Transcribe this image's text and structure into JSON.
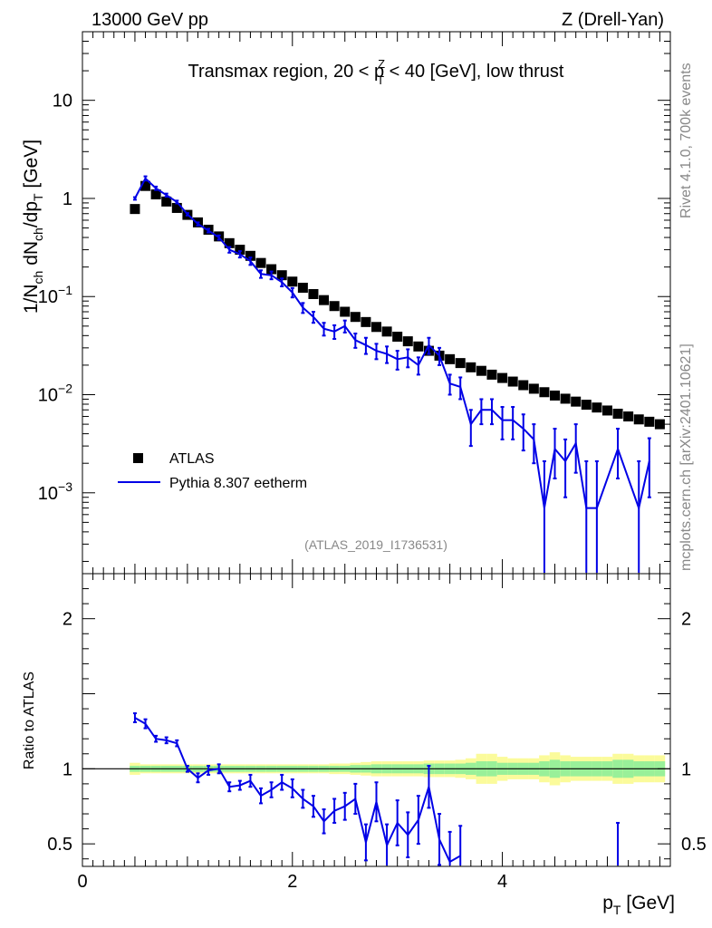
{
  "header": {
    "left": "13000 GeV pp",
    "right": "Z (Drell-Yan)"
  },
  "side_labels": {
    "rivet": "Rivet 4.1.0,  700k events",
    "mcplots": "mcplots.cern.ch [arXiv:2401.10621]"
  },
  "colors": {
    "atlas": "#000000",
    "pythia": "#0000e6",
    "band_inner": "#99f099",
    "band_outer": "#fbfb9b"
  },
  "chart_data": [
    {
      "type": "scatter",
      "title": "Transmax region, 20 < p_T^Z < 40 [GeV], low thrust",
      "title_parts": [
        "Transmax region, 20 < p",
        "Z",
        "T",
        " < 40 [GeV], low thrust"
      ],
      "ylabel": "1/N_ch dN_ch/dp_T [GeV]",
      "ylabel_parts": [
        "1/N",
        "ch",
        " dN",
        "ch",
        "/dp",
        "T",
        " [GeV]"
      ],
      "yscale": "log",
      "ylim": [
        0.00015,
        50
      ],
      "xlim": [
        0,
        5.6
      ],
      "y_ticks": [
        {
          "value": 10,
          "label": "10",
          "exp": ""
        },
        {
          "value": 1,
          "label": "1",
          "exp": ""
        },
        {
          "value": 0.1,
          "label": "10",
          "exp": "−1"
        },
        {
          "value": 0.01,
          "label": "10",
          "exp": "−2"
        },
        {
          "value": 0.001,
          "label": "10",
          "exp": "−3"
        }
      ],
      "watermark": "(ATLAS_2019_I1736531)",
      "legend": [
        "ATLAS",
        "Pythia 8.307 eetherm"
      ],
      "legend_position": "bottom-left",
      "x": [
        0.5,
        0.6,
        0.7,
        0.8,
        0.9,
        1.0,
        1.1,
        1.2,
        1.3,
        1.4,
        1.5,
        1.6,
        1.7,
        1.8,
        1.9,
        2.0,
        2.1,
        2.2,
        2.3,
        2.4,
        2.5,
        2.6,
        2.7,
        2.8,
        2.9,
        3.0,
        3.1,
        3.2,
        3.3,
        3.4,
        3.5,
        3.6,
        3.7,
        3.8,
        3.9,
        4.0,
        4.1,
        4.2,
        4.3,
        4.4,
        4.5,
        4.6,
        4.7,
        4.8,
        4.9,
        5.0,
        5.1,
        5.2,
        5.3,
        5.4,
        5.5
      ],
      "series": [
        {
          "name": "ATLAS",
          "values": [
            0.78,
            1.34,
            1.1,
            0.93,
            0.8,
            0.68,
            0.57,
            0.48,
            0.41,
            0.35,
            0.3,
            0.26,
            0.22,
            0.19,
            0.165,
            0.142,
            0.123,
            0.106,
            0.092,
            0.08,
            0.07,
            0.062,
            0.055,
            0.049,
            0.044,
            0.039,
            0.035,
            0.031,
            0.028,
            0.025,
            0.023,
            0.021,
            0.019,
            0.0175,
            0.016,
            0.0148,
            0.0136,
            0.0125,
            0.0115,
            0.0106,
            0.0098,
            0.0091,
            0.0085,
            0.0079,
            0.0074,
            0.0069,
            0.0064,
            0.006,
            0.0056,
            0.0053,
            0.005
          ]
        },
        {
          "name": "Pythia 8.307 eetherm",
          "x": [
            0.5,
            0.6,
            0.7,
            0.8,
            0.9,
            1.0,
            1.1,
            1.2,
            1.3,
            1.4,
            1.5,
            1.6,
            1.7,
            1.8,
            1.9,
            2.0,
            2.1,
            2.2,
            2.3,
            2.4,
            2.5,
            2.6,
            2.7,
            2.8,
            2.9,
            3.0,
            3.1,
            3.2,
            3.3,
            3.4,
            3.5,
            3.6,
            3.7,
            3.8,
            3.9,
            4.0,
            4.1,
            4.2,
            4.3,
            4.4,
            4.5,
            4.6,
            4.7,
            4.8,
            4.9,
            5.1,
            5.3,
            5.4
          ],
          "values": [
            1.0,
            1.6,
            1.27,
            1.08,
            0.92,
            0.69,
            0.55,
            0.47,
            0.4,
            0.3,
            0.27,
            0.23,
            0.17,
            0.165,
            0.14,
            0.11,
            0.077,
            0.062,
            0.047,
            0.044,
            0.05,
            0.036,
            0.032,
            0.028,
            0.026,
            0.023,
            0.024,
            0.02,
            0.032,
            0.025,
            0.013,
            0.012,
            0.005,
            0.007,
            0.007,
            0.0055,
            0.0055,
            0.0045,
            0.0035,
            0.0007,
            0.0028,
            0.0021,
            0.0032,
            0.0007,
            0.0007,
            0.0028,
            0.0007,
            0.0021
          ],
          "err_low": [
            0.03,
            0.08,
            0.05,
            0.04,
            0.03,
            0.02,
            0.02,
            0.02,
            0.02,
            0.02,
            0.02,
            0.02,
            0.015,
            0.015,
            0.013,
            0.012,
            0.009,
            0.008,
            0.007,
            0.007,
            0.007,
            0.006,
            0.006,
            0.005,
            0.005,
            0.005,
            0.005,
            0.004,
            0.006,
            0.005,
            0.003,
            0.003,
            0.002,
            0.002,
            0.002,
            0.002,
            0.002,
            0.0018,
            0.0015,
            0.0007,
            0.0014,
            0.0012,
            0.0016,
            0.0007,
            0.0007,
            0.0014,
            0.0007,
            0.0012
          ],
          "err_high": [
            0.03,
            0.08,
            0.05,
            0.04,
            0.03,
            0.02,
            0.02,
            0.02,
            0.02,
            0.02,
            0.02,
            0.02,
            0.015,
            0.015,
            0.013,
            0.012,
            0.009,
            0.008,
            0.007,
            0.007,
            0.007,
            0.006,
            0.006,
            0.005,
            0.005,
            0.005,
            0.005,
            0.004,
            0.006,
            0.005,
            0.003,
            0.003,
            0.002,
            0.002,
            0.002,
            0.002,
            0.002,
            0.0018,
            0.0015,
            0.0014,
            0.0017,
            0.0014,
            0.0018,
            0.0014,
            0.0014,
            0.0017,
            0.0014,
            0.0015
          ]
        }
      ]
    },
    {
      "type": "line",
      "title": "",
      "xlabel": "p_T [GeV]",
      "xlabel_parts": [
        "p",
        "T",
        " [GeV]"
      ],
      "ylabel": "Ratio to ATLAS",
      "ylim": [
        0.35,
        2.3
      ],
      "xlim": [
        0,
        5.6
      ],
      "x_ticks": [
        0,
        2,
        4
      ],
      "y_ticks": [
        0.5,
        1,
        2
      ],
      "band": {
        "x": [
          0.5,
          0.6,
          0.7,
          0.8,
          0.9,
          1.0,
          1.1,
          1.2,
          1.3,
          1.4,
          1.5,
          1.6,
          1.7,
          1.8,
          1.9,
          2.0,
          2.1,
          2.2,
          2.3,
          2.4,
          2.5,
          2.6,
          2.7,
          2.8,
          2.9,
          3.0,
          3.1,
          3.2,
          3.3,
          3.4,
          3.5,
          3.6,
          3.7,
          3.8,
          3.9,
          4.0,
          4.1,
          4.2,
          4.3,
          4.4,
          4.5,
          4.6,
          4.7,
          4.8,
          4.9,
          5.0,
          5.1,
          5.2,
          5.3,
          5.4,
          5.5
        ],
        "inner": [
          0.02,
          0.02,
          0.02,
          0.02,
          0.02,
          0.02,
          0.02,
          0.02,
          0.02,
          0.02,
          0.02,
          0.02,
          0.02,
          0.02,
          0.02,
          0.02,
          0.02,
          0.02,
          0.02,
          0.02,
          0.02,
          0.025,
          0.025,
          0.03,
          0.03,
          0.03,
          0.03,
          0.03,
          0.035,
          0.035,
          0.035,
          0.035,
          0.04,
          0.05,
          0.05,
          0.04,
          0.04,
          0.04,
          0.04,
          0.05,
          0.06,
          0.05,
          0.05,
          0.05,
          0.05,
          0.05,
          0.06,
          0.06,
          0.05,
          0.05,
          0.05
        ],
        "outer": [
          0.04,
          0.03,
          0.03,
          0.03,
          0.03,
          0.03,
          0.03,
          0.03,
          0.03,
          0.03,
          0.03,
          0.03,
          0.03,
          0.03,
          0.03,
          0.03,
          0.03,
          0.03,
          0.03,
          0.035,
          0.035,
          0.04,
          0.045,
          0.05,
          0.05,
          0.05,
          0.05,
          0.05,
          0.055,
          0.055,
          0.055,
          0.06,
          0.07,
          0.1,
          0.1,
          0.08,
          0.07,
          0.07,
          0.07,
          0.09,
          0.11,
          0.09,
          0.08,
          0.08,
          0.08,
          0.08,
          0.1,
          0.1,
          0.09,
          0.09,
          0.09
        ]
      },
      "series": [
        {
          "name": "Pythia 8.307 eetherm / ATLAS",
          "x": [
            0.5,
            0.6,
            0.7,
            0.8,
            0.9,
            1.0,
            1.1,
            1.2,
            1.3,
            1.4,
            1.5,
            1.6,
            1.7,
            1.8,
            1.9,
            2.0,
            2.1,
            2.2,
            2.3,
            2.4,
            2.5,
            2.6,
            2.7,
            2.8,
            2.9,
            3.0,
            3.1,
            3.2,
            3.3,
            3.4,
            3.5,
            3.6
          ],
          "values": [
            1.34,
            1.3,
            1.2,
            1.19,
            1.17,
            1.0,
            0.94,
            0.99,
            1.0,
            0.88,
            0.89,
            0.92,
            0.82,
            0.86,
            0.91,
            0.87,
            0.8,
            0.75,
            0.65,
            0.72,
            0.75,
            0.8,
            0.51,
            0.78,
            0.49,
            0.64,
            0.56,
            0.66,
            0.88,
            0.53,
            0.38,
            0.42
          ],
          "err": [
            0.03,
            0.03,
            0.02,
            0.02,
            0.02,
            0.02,
            0.03,
            0.03,
            0.03,
            0.03,
            0.03,
            0.04,
            0.05,
            0.05,
            0.05,
            0.06,
            0.06,
            0.07,
            0.08,
            0.08,
            0.09,
            0.1,
            0.12,
            0.13,
            0.14,
            0.15,
            0.15,
            0.16,
            0.14,
            0.17,
            0.2,
            0.2
          ]
        },
        {
          "name": "isolated high point",
          "x": [
            5.1
          ],
          "values": [
            0.45
          ],
          "err": [
            0.19
          ]
        }
      ]
    }
  ]
}
